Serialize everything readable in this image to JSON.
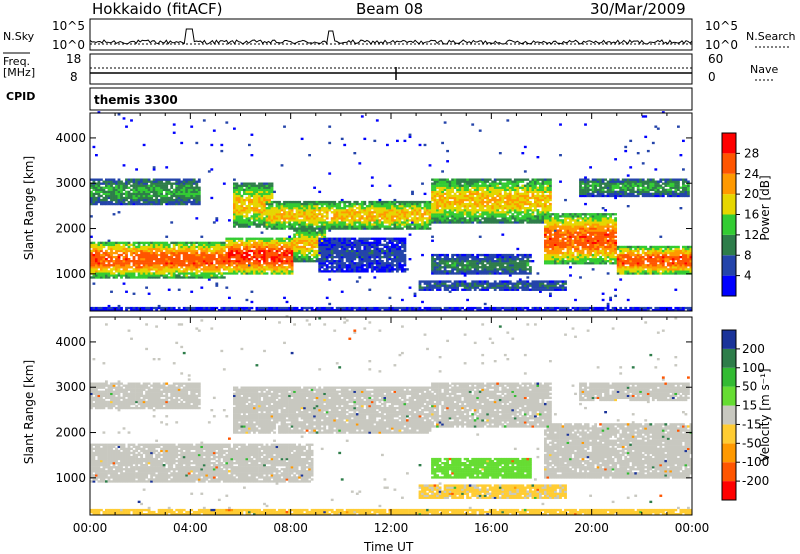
{
  "header": {
    "radar": "Hokkaido (fitACF)",
    "beam": "Beam 08",
    "date": "30/Mar/2009"
  },
  "top_panels": {
    "nsky_label": "N.Sky",
    "nsky_ticks": [
      "10^5",
      "10^0"
    ],
    "nsearch_label": "N.Search",
    "nsearch_ticks": [
      "10^5",
      "10^0"
    ],
    "freq_label": "Freq.",
    "freq_unit": "[MHz]",
    "freq_ticks": [
      "18",
      "8"
    ],
    "nave_label": "Nave",
    "nave_ticks": [
      "60",
      "0"
    ],
    "cpid_label": "CPID",
    "cpid_value": "themis 3300"
  },
  "chart_data": [
    {
      "type": "heatmap",
      "name": "power",
      "ylabel": "Slant Range [km]",
      "yticks": [
        1000,
        2000,
        3000,
        4000
      ],
      "ylim": [
        180,
        4550
      ],
      "xlim": [
        0,
        24
      ],
      "colorbar": {
        "label": "Power [dB]",
        "ticks": [
          4,
          8,
          12,
          16,
          20,
          24,
          28
        ],
        "range": [
          0,
          32
        ],
        "colors": [
          "#0000ff",
          "#2444aa",
          "#2e7d4a",
          "#33cc33",
          "#e6d600",
          "#ff9900",
          "#ff5500",
          "#ff0000"
        ]
      },
      "bands": [
        {
          "t0": 0.0,
          "t1": 5.3,
          "r0": 900,
          "r1": 1700,
          "level": 26
        },
        {
          "t0": 5.3,
          "t1": 8.0,
          "r0": 950,
          "r1": 1800,
          "level": 28
        },
        {
          "t0": 8.0,
          "t1": 9.3,
          "r0": 1250,
          "r1": 2000,
          "level": 20
        },
        {
          "t0": 0.0,
          "t1": 4.4,
          "r0": 2500,
          "r1": 3100,
          "level": 12
        },
        {
          "t0": 5.6,
          "t1": 7.2,
          "r0": 2000,
          "r1": 3000,
          "level": 20
        },
        {
          "t0": 6.9,
          "t1": 13.5,
          "r0": 1950,
          "r1": 2600,
          "level": 20
        },
        {
          "t0": 13.5,
          "t1": 18.3,
          "r0": 2100,
          "r1": 3100,
          "level": 20
        },
        {
          "t0": 18.0,
          "t1": 21.0,
          "r0": 1200,
          "r1": 2300,
          "level": 26
        },
        {
          "t0": 21.0,
          "t1": 24.0,
          "r0": 950,
          "r1": 1600,
          "level": 26
        },
        {
          "t0": 19.5,
          "t1": 23.9,
          "r0": 2700,
          "r1": 3100,
          "level": 12
        },
        {
          "t0": 13.5,
          "t1": 17.5,
          "r0": 950,
          "r1": 1400,
          "level": 10
        },
        {
          "t0": 13.0,
          "t1": 19.0,
          "r0": 600,
          "r1": 850,
          "level": 8
        },
        {
          "t0": 9.0,
          "t1": 12.5,
          "r0": 1000,
          "r1": 1800,
          "level": 6
        },
        {
          "t0": 0.0,
          "t1": 24.0,
          "r0": 180,
          "r1": 260,
          "level": 4
        }
      ]
    },
    {
      "type": "heatmap",
      "name": "velocity",
      "ylabel": "Slant Range [km]",
      "yticks": [
        1000,
        2000,
        3000,
        4000
      ],
      "ylim": [
        180,
        4550
      ],
      "xlim": [
        0,
        24
      ],
      "xticks": [
        "00:00",
        "04:00",
        "08:00",
        "12:00",
        "16:00",
        "20:00",
        "00:00"
      ],
      "xlabel": "Time UT",
      "colorbar": {
        "label": "Velocity [m s⁻¹]",
        "ticks": [
          "200",
          "100",
          "50",
          "15",
          "-15",
          "-50",
          "-100",
          "-200"
        ],
        "colors": [
          "#1a3399",
          "#2e7d4a",
          "#33bb33",
          "#66dd33",
          "#c8c8c0",
          "#ffcc33",
          "#ff9900",
          "#ff5500",
          "#ff0000"
        ]
      },
      "bands": [
        {
          "t0": 0.0,
          "t1": 8.8,
          "r0": 900,
          "r1": 1750,
          "level": 0
        },
        {
          "t0": 0.0,
          "t1": 4.4,
          "r0": 2500,
          "r1": 3100,
          "level": 0
        },
        {
          "t0": 5.6,
          "t1": 13.5,
          "r0": 1950,
          "r1": 3000,
          "level": 0
        },
        {
          "t0": 13.5,
          "t1": 18.3,
          "r0": 2100,
          "r1": 3100,
          "level": 0
        },
        {
          "t0": 18.0,
          "t1": 24.0,
          "r0": 950,
          "r1": 2200,
          "level": 0
        },
        {
          "t0": 19.5,
          "t1": 23.9,
          "r0": 2700,
          "r1": 3100,
          "level": 0
        },
        {
          "t0": 13.5,
          "t1": 17.5,
          "r0": 950,
          "r1": 1400,
          "level": 30
        },
        {
          "t0": 13.0,
          "t1": 19.0,
          "r0": 500,
          "r1": 850,
          "level": -20
        },
        {
          "t0": 0.0,
          "t1": 24.0,
          "r0": 180,
          "r1": 300,
          "level": -40
        }
      ]
    }
  ]
}
